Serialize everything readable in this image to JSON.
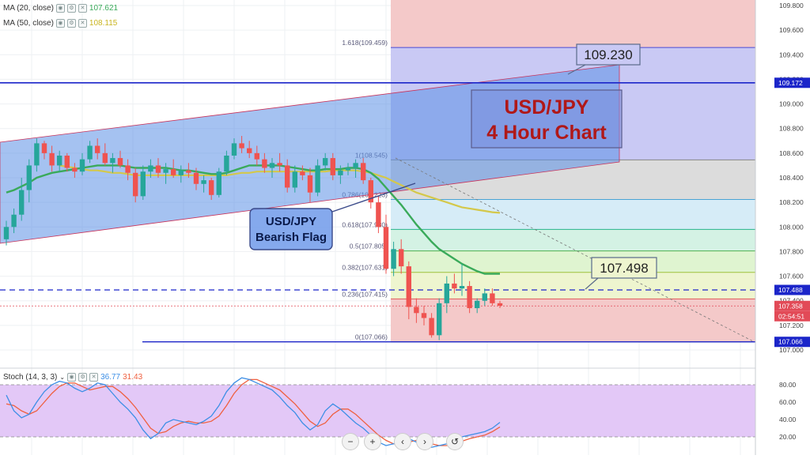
{
  "legend": {
    "ma20_label": "MA (20, close)",
    "ma20_value": "107.621",
    "ma50_label": "MA (50, close)",
    "ma50_value": "108.115",
    "stoch_label": "Stoch (14, 3, 3)",
    "stoch_k_value": "36.77",
    "stoch_d_value": "31.43"
  },
  "price_axis": {
    "ticks": [
      "109.800",
      "109.600",
      "109.400",
      "109.200",
      "109.000",
      "108.800",
      "108.600",
      "108.400",
      "108.200",
      "108.000",
      "107.800",
      "107.600",
      "107.400",
      "107.200",
      "107.000"
    ],
    "badges": [
      {
        "label": "109.172",
        "color": "#1b25c9"
      },
      {
        "label": "107.488",
        "color": "#1b25c9"
      },
      {
        "label": "107.358",
        "color": "#e24a57"
      },
      {
        "label": "02:54:51",
        "color": "#e24a57"
      },
      {
        "label": "107.066",
        "color": "#1b25c9"
      }
    ]
  },
  "stoch_axis": {
    "ticks": [
      "80.00",
      "60.00",
      "40.00",
      "20.00"
    ]
  },
  "fib_levels": [
    "1.618(109.459)",
    "1(108.545)",
    "0.786(108.223)",
    "0.618(107.980)",
    "0.5(107.805)",
    "0.382(107.631)",
    "0.236(107.415)",
    "0(107.066)"
  ],
  "annotations": {
    "title_line1": "USD/JPY",
    "title_line2": "4 Hour Chart",
    "callout_top": "109.230",
    "callout_mid": "107.498",
    "flag_line1": "USD/JPY",
    "flag_line2": "Bearish Flag"
  },
  "nav": {
    "zoom_out": "−",
    "zoom_in": "+",
    "back": "‹",
    "forward": "›",
    "reset": "↺"
  },
  "colors": {
    "up": "#26a69a",
    "down": "#ef5350",
    "ma20": "#3aaa5a",
    "ma50": "#d4c84a",
    "channel": "#5b8fe6",
    "stoch_k": "#3d8fe6",
    "stoch_d": "#ef6040",
    "level_line": "#1b25c9"
  },
  "chart_data": {
    "type": "candlestick",
    "symbol": "USD/JPY",
    "timeframe": "4 Hour",
    "ylim": [
      107.0,
      109.85
    ],
    "candles": [
      {
        "o": 107.9,
        "h": 108.05,
        "l": 107.85,
        "c": 108.0
      },
      {
        "o": 108.0,
        "h": 108.15,
        "l": 107.95,
        "c": 108.1
      },
      {
        "o": 108.1,
        "h": 108.4,
        "l": 108.05,
        "c": 108.3
      },
      {
        "o": 108.3,
        "h": 108.55,
        "l": 108.2,
        "c": 108.5
      },
      {
        "o": 108.5,
        "h": 108.72,
        "l": 108.45,
        "c": 108.68
      },
      {
        "o": 108.68,
        "h": 108.7,
        "l": 108.55,
        "c": 108.6
      },
      {
        "o": 108.6,
        "h": 108.66,
        "l": 108.45,
        "c": 108.5
      },
      {
        "o": 108.5,
        "h": 108.62,
        "l": 108.45,
        "c": 108.58
      },
      {
        "o": 108.58,
        "h": 108.6,
        "l": 108.45,
        "c": 108.48
      },
      {
        "o": 108.48,
        "h": 108.52,
        "l": 108.4,
        "c": 108.45
      },
      {
        "o": 108.45,
        "h": 108.6,
        "l": 108.42,
        "c": 108.55
      },
      {
        "o": 108.55,
        "h": 108.7,
        "l": 108.52,
        "c": 108.66
      },
      {
        "o": 108.66,
        "h": 108.72,
        "l": 108.55,
        "c": 108.6
      },
      {
        "o": 108.6,
        "h": 108.68,
        "l": 108.5,
        "c": 108.52
      },
      {
        "o": 108.52,
        "h": 108.6,
        "l": 108.44,
        "c": 108.56
      },
      {
        "o": 108.56,
        "h": 108.62,
        "l": 108.48,
        "c": 108.5
      },
      {
        "o": 108.5,
        "h": 108.55,
        "l": 108.38,
        "c": 108.44
      },
      {
        "o": 108.44,
        "h": 108.48,
        "l": 108.2,
        "c": 108.25
      },
      {
        "o": 108.25,
        "h": 108.5,
        "l": 108.22,
        "c": 108.45
      },
      {
        "o": 108.45,
        "h": 108.55,
        "l": 108.4,
        "c": 108.5
      },
      {
        "o": 108.5,
        "h": 108.56,
        "l": 108.4,
        "c": 108.44
      },
      {
        "o": 108.44,
        "h": 108.52,
        "l": 108.35,
        "c": 108.47
      },
      {
        "o": 108.47,
        "h": 108.55,
        "l": 108.4,
        "c": 108.42
      },
      {
        "o": 108.42,
        "h": 108.5,
        "l": 108.36,
        "c": 108.46
      },
      {
        "o": 108.46,
        "h": 108.52,
        "l": 108.4,
        "c": 108.44
      },
      {
        "o": 108.44,
        "h": 108.48,
        "l": 108.3,
        "c": 108.35
      },
      {
        "o": 108.35,
        "h": 108.42,
        "l": 108.28,
        "c": 108.38
      },
      {
        "o": 108.38,
        "h": 108.4,
        "l": 108.22,
        "c": 108.26
      },
      {
        "o": 108.26,
        "h": 108.48,
        "l": 108.24,
        "c": 108.45
      },
      {
        "o": 108.45,
        "h": 108.62,
        "l": 108.42,
        "c": 108.58
      },
      {
        "o": 108.58,
        "h": 108.72,
        "l": 108.55,
        "c": 108.68
      },
      {
        "o": 108.68,
        "h": 108.74,
        "l": 108.6,
        "c": 108.64
      },
      {
        "o": 108.64,
        "h": 108.7,
        "l": 108.56,
        "c": 108.6
      },
      {
        "o": 108.6,
        "h": 108.66,
        "l": 108.5,
        "c": 108.55
      },
      {
        "o": 108.55,
        "h": 108.6,
        "l": 108.44,
        "c": 108.48
      },
      {
        "o": 108.48,
        "h": 108.56,
        "l": 108.4,
        "c": 108.52
      },
      {
        "o": 108.52,
        "h": 108.6,
        "l": 108.45,
        "c": 108.5
      },
      {
        "o": 108.5,
        "h": 108.55,
        "l": 108.28,
        "c": 108.32
      },
      {
        "o": 108.32,
        "h": 108.5,
        "l": 108.28,
        "c": 108.45
      },
      {
        "o": 108.45,
        "h": 108.5,
        "l": 108.38,
        "c": 108.42
      },
      {
        "o": 108.42,
        "h": 108.48,
        "l": 108.2,
        "c": 108.28
      },
      {
        "o": 108.28,
        "h": 108.55,
        "l": 108.25,
        "c": 108.5
      },
      {
        "o": 108.5,
        "h": 108.6,
        "l": 108.46,
        "c": 108.56
      },
      {
        "o": 108.56,
        "h": 108.6,
        "l": 108.38,
        "c": 108.42
      },
      {
        "o": 108.42,
        "h": 108.5,
        "l": 108.35,
        "c": 108.46
      },
      {
        "o": 108.46,
        "h": 108.52,
        "l": 108.42,
        "c": 108.48
      },
      {
        "o": 108.48,
        "h": 108.55,
        "l": 108.4,
        "c": 108.52
      },
      {
        "o": 108.52,
        "h": 108.56,
        "l": 108.35,
        "c": 108.38
      },
      {
        "o": 108.38,
        "h": 108.4,
        "l": 108.15,
        "c": 108.2
      },
      {
        "o": 108.2,
        "h": 108.25,
        "l": 107.95,
        "c": 108.0
      },
      {
        "o": 108.0,
        "h": 108.1,
        "l": 107.62,
        "c": 107.66
      },
      {
        "o": 107.66,
        "h": 107.88,
        "l": 107.6,
        "c": 107.82
      },
      {
        "o": 107.82,
        "h": 107.9,
        "l": 107.62,
        "c": 107.68
      },
      {
        "o": 107.68,
        "h": 107.72,
        "l": 107.25,
        "c": 107.35
      },
      {
        "o": 107.35,
        "h": 107.42,
        "l": 107.22,
        "c": 107.3
      },
      {
        "o": 107.3,
        "h": 107.36,
        "l": 107.2,
        "c": 107.26
      },
      {
        "o": 107.26,
        "h": 107.3,
        "l": 107.1,
        "c": 107.12
      },
      {
        "o": 107.12,
        "h": 107.42,
        "l": 107.08,
        "c": 107.38
      },
      {
        "o": 107.38,
        "h": 107.6,
        "l": 107.3,
        "c": 107.54
      },
      {
        "o": 107.54,
        "h": 107.62,
        "l": 107.46,
        "c": 107.5
      },
      {
        "o": 107.5,
        "h": 107.7,
        "l": 107.44,
        "c": 107.52
      },
      {
        "o": 107.52,
        "h": 107.56,
        "l": 107.3,
        "c": 107.34
      },
      {
        "o": 107.34,
        "h": 107.42,
        "l": 107.3,
        "c": 107.4
      },
      {
        "o": 107.4,
        "h": 107.5,
        "l": 107.36,
        "c": 107.46
      },
      {
        "o": 107.46,
        "h": 107.5,
        "l": 107.36,
        "c": 107.38
      },
      {
        "o": 107.38,
        "h": 107.4,
        "l": 107.34,
        "c": 107.36
      }
    ],
    "ma20": [
      108.28,
      108.3,
      108.33,
      108.36,
      108.4,
      108.42,
      108.44,
      108.45,
      108.46,
      108.47,
      108.48,
      108.49,
      108.5,
      108.5,
      108.5,
      108.5,
      108.49,
      108.48,
      108.48,
      108.48,
      108.48,
      108.48,
      108.47,
      108.46,
      108.46,
      108.45,
      108.44,
      108.43,
      108.43,
      108.44,
      108.46,
      108.48,
      108.5,
      108.5,
      108.5,
      108.5,
      108.5,
      108.49,
      108.48,
      108.47,
      108.46,
      108.46,
      108.47,
      108.47,
      108.47,
      108.48,
      108.48,
      108.47,
      108.44,
      108.39,
      108.32,
      108.25,
      108.18,
      108.1,
      108.02,
      107.95,
      107.88,
      107.82,
      107.78,
      107.74,
      107.7,
      107.67,
      107.64,
      107.62,
      107.62,
      107.62
    ],
    "ma50": [
      null,
      null,
      null,
      null,
      null,
      null,
      null,
      108.5,
      108.49,
      108.48,
      108.47,
      108.46,
      108.46,
      108.45,
      108.44,
      108.44,
      108.43,
      108.42,
      108.42,
      108.42,
      108.42,
      108.42,
      108.42,
      108.42,
      108.42,
      108.42,
      108.42,
      108.42,
      108.42,
      108.42,
      108.43,
      108.44,
      108.44,
      108.45,
      108.45,
      108.45,
      108.45,
      108.45,
      108.45,
      108.45,
      108.45,
      108.45,
      108.45,
      108.46,
      108.46,
      108.46,
      108.46,
      108.45,
      108.44,
      108.42,
      108.4,
      108.37,
      108.34,
      108.31,
      108.28,
      108.26,
      108.24,
      108.22,
      108.2,
      108.18,
      108.16,
      108.15,
      108.14,
      108.13,
      108.12,
      108.115
    ],
    "fibonacci": {
      "1.618": 109.459,
      "1": 108.545,
      "0.786": 108.223,
      "0.618": 107.98,
      "0.5": 107.805,
      "0.382": 107.631,
      "0.236": 107.415,
      "0": 107.066
    },
    "horizontal_levels": [
      109.172,
      107.488,
      107.066
    ],
    "last_price": 107.358,
    "callouts": [
      109.23,
      107.498
    ],
    "stochastic": {
      "params": "14, 3, 3",
      "ylim": [
        0,
        100
      ],
      "bands": [
        80,
        20
      ],
      "k": [
        68,
        50,
        42,
        46,
        60,
        72,
        80,
        84,
        82,
        76,
        72,
        76,
        82,
        80,
        70,
        60,
        52,
        42,
        28,
        18,
        24,
        36,
        40,
        38,
        36,
        34,
        38,
        44,
        56,
        72,
        82,
        88,
        86,
        82,
        78,
        74,
        66,
        56,
        48,
        36,
        28,
        34,
        50,
        58,
        52,
        44,
        36,
        30,
        22,
        14,
        10,
        12,
        16,
        18,
        14,
        10,
        8,
        10,
        12,
        16,
        20,
        22,
        24,
        26,
        30,
        36.77
      ],
      "d": [
        58,
        56,
        50,
        46,
        50,
        60,
        70,
        78,
        82,
        82,
        78,
        74,
        76,
        78,
        78,
        72,
        64,
        54,
        42,
        30,
        24,
        26,
        32,
        36,
        38,
        36,
        36,
        38,
        44,
        56,
        70,
        80,
        86,
        86,
        82,
        78,
        74,
        66,
        58,
        48,
        38,
        32,
        36,
        46,
        52,
        52,
        46,
        38,
        30,
        22,
        16,
        12,
        12,
        14,
        16,
        14,
        12,
        10,
        10,
        12,
        15,
        18,
        20,
        22,
        26,
        31.43
      ]
    }
  }
}
